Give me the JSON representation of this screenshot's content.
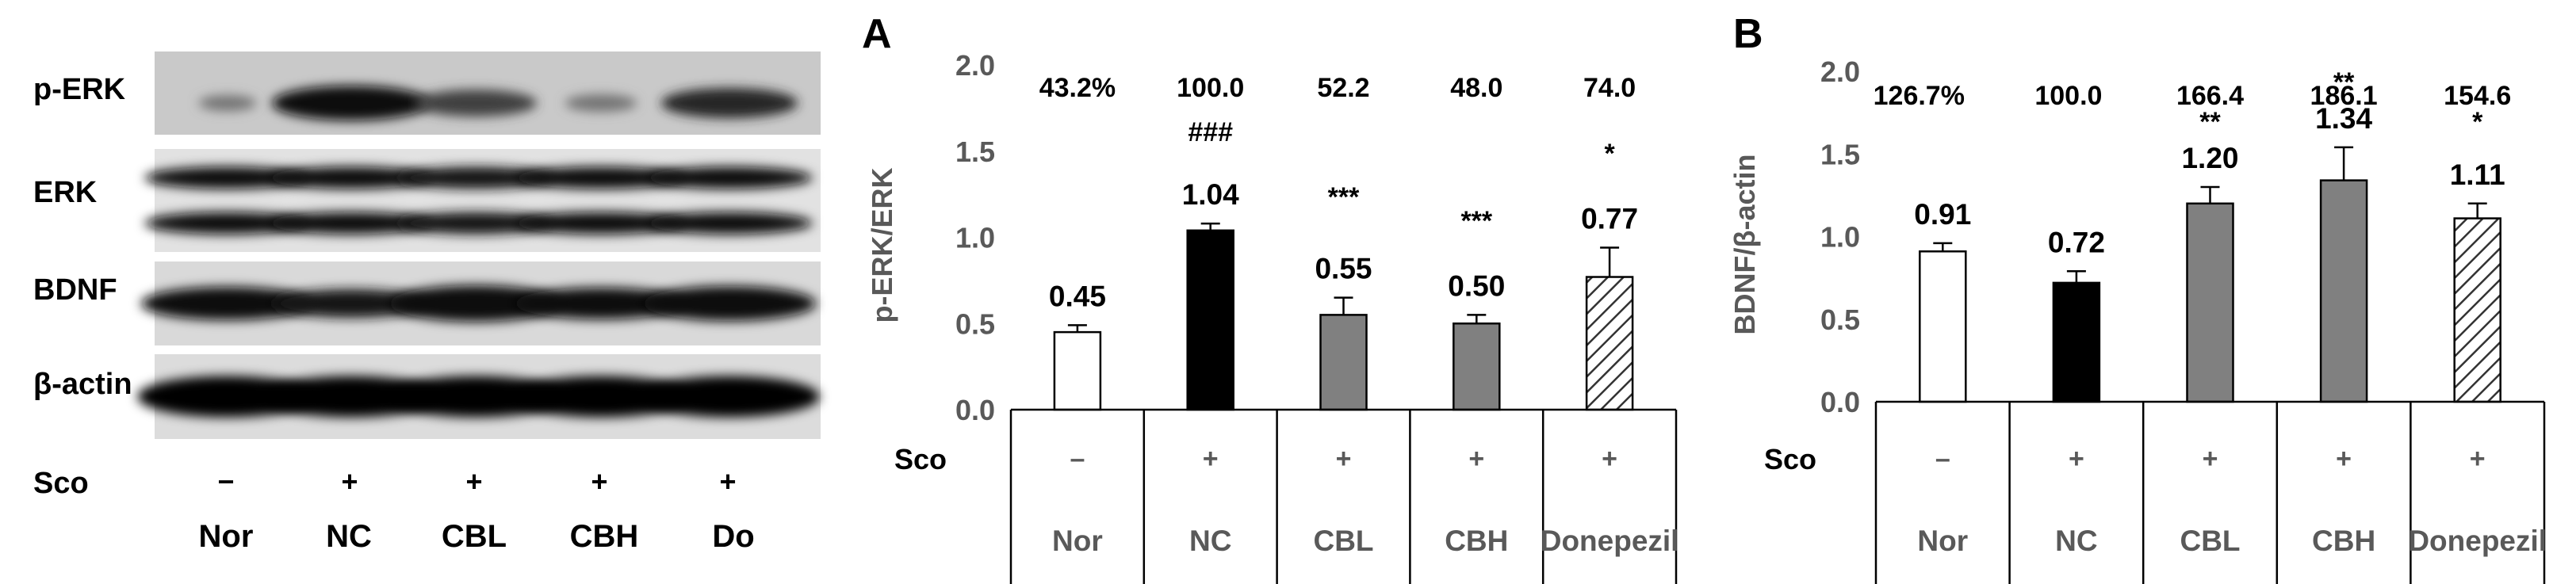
{
  "blot": {
    "rows": [
      {
        "label": "p-ERK",
        "pattern": "perk"
      },
      {
        "label": "ERK",
        "pattern": "erk"
      },
      {
        "label": "BDNF",
        "pattern": "bdnf"
      },
      {
        "label": "β-actin",
        "pattern": "actin"
      }
    ],
    "sco_label": "Sco",
    "sco_values": [
      "−",
      "+",
      "+",
      "+",
      "+"
    ],
    "lanes": [
      "Nor",
      "NC",
      "CBL",
      "CBH",
      "Do"
    ]
  },
  "chart_data": [
    {
      "type": "bar",
      "panel": "A",
      "ylabel": "p-ERK/ERK",
      "ylim": [
        0,
        2.0
      ],
      "yticks": [
        "0.0",
        "0.5",
        "1.0",
        "1.5",
        "2.0"
      ],
      "categories": [
        "Nor",
        "NC",
        "CBL",
        "CBH",
        "Donepezil"
      ],
      "values": [
        0.45,
        1.04,
        0.55,
        0.5,
        0.77
      ],
      "errors": [
        0.04,
        0.04,
        0.1,
        0.05,
        0.17
      ],
      "value_labels": [
        "0.45",
        "1.04",
        "0.55",
        "0.50",
        "0.77"
      ],
      "percent_labels": [
        "43.2%",
        "100.0",
        "52.2",
        "48.0",
        "74.0"
      ],
      "significance": [
        "",
        "###",
        "***",
        "***",
        "*"
      ],
      "fills": [
        "white",
        "black",
        "gray",
        "gray",
        "hatched"
      ],
      "sco_label": "Sco",
      "sco_values": [
        "–",
        "+",
        "+",
        "+",
        "+"
      ]
    },
    {
      "type": "bar",
      "panel": "B",
      "ylabel": "BDNF/β-actin",
      "ylim": [
        0,
        2.0
      ],
      "yticks": [
        "0.0",
        "0.5",
        "1.0",
        "1.5",
        "2.0"
      ],
      "categories": [
        "Nor",
        "NC",
        "CBL",
        "CBH",
        "Donepezil"
      ],
      "values": [
        0.91,
        0.72,
        1.2,
        1.34,
        1.11
      ],
      "errors": [
        0.05,
        0.07,
        0.1,
        0.2,
        0.09
      ],
      "value_labels": [
        "0.91",
        "0.72",
        "1.20",
        "1.34",
        "1.11"
      ],
      "percent_labels": [
        "126.7%",
        "100.0",
        "166.4",
        "186.1",
        "154.6"
      ],
      "significance": [
        "",
        "",
        "**",
        "**",
        "*"
      ],
      "fills": [
        "white",
        "black",
        "gray",
        "gray",
        "hatched"
      ],
      "sco_label": "Sco",
      "sco_values": [
        "–",
        "+",
        "+",
        "+",
        "+"
      ]
    }
  ],
  "colors": {
    "gray_bar": "#808080",
    "black_bar": "#000000",
    "text": "#000000",
    "axis_text": "#595959"
  }
}
